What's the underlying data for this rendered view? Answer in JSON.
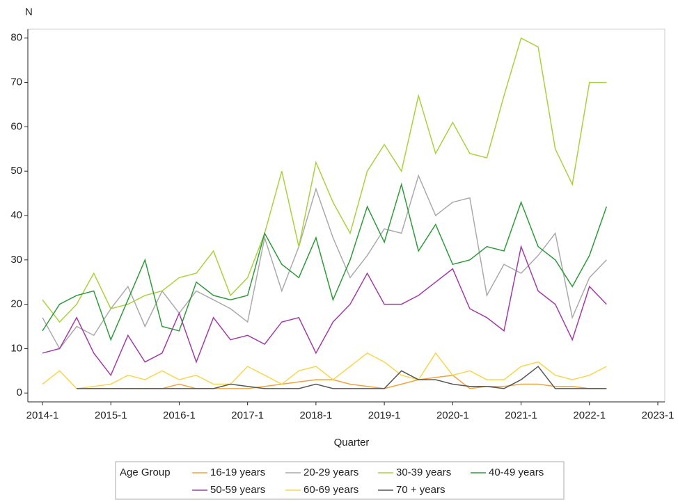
{
  "chart_data": {
    "type": "line",
    "y_label": "N",
    "x_label": "Quarter",
    "legend_title": "Age Group",
    "categories": [
      "2014-1",
      null,
      null,
      null,
      "2015-1",
      null,
      null,
      null,
      "2016-1",
      null,
      null,
      null,
      "2017-1",
      null,
      null,
      null,
      "2018-1",
      null,
      null,
      null,
      "2019-1",
      null,
      null,
      null,
      "2020-1",
      null,
      null,
      null,
      "2021-1",
      null,
      null,
      null,
      "2022-1",
      null,
      null,
      null,
      "2023-1"
    ],
    "ylim": [
      -2,
      82
    ],
    "yticks": [
      0,
      10,
      20,
      30,
      40,
      50,
      60,
      70,
      80
    ],
    "series": [
      {
        "name": "16-19 years",
        "color": "#f2a33a",
        "values": [
          null,
          null,
          1,
          1,
          1,
          1,
          1,
          1,
          2,
          1,
          1,
          1,
          1,
          1.5,
          2,
          2.5,
          3,
          3,
          2,
          1.5,
          1,
          2,
          3,
          3.5,
          4,
          1,
          1.5,
          1.5,
          2,
          2,
          1.5,
          1.5,
          1,
          1,
          null,
          null,
          null
        ]
      },
      {
        "name": "20-29 years",
        "color": "#aaaaaa",
        "values": [
          17,
          10,
          15,
          13,
          19,
          24,
          15,
          23,
          18,
          23,
          21,
          19,
          16,
          35,
          23,
          33,
          46,
          35,
          26,
          31,
          37,
          36,
          49,
          40,
          43,
          44,
          22,
          29,
          27,
          31,
          36,
          17,
          26,
          30,
          null,
          null,
          null
        ]
      },
      {
        "name": "30-39 years",
        "color": "#a8d23c",
        "values": [
          21,
          16,
          20,
          27,
          19,
          20,
          22,
          23,
          26,
          27,
          32,
          22,
          26,
          36,
          50,
          33,
          52,
          43,
          36,
          50,
          56,
          50,
          67,
          54,
          61,
          54,
          53,
          67,
          80,
          78,
          55,
          47,
          70,
          70,
          null,
          null,
          null
        ]
      },
      {
        "name": "40-49 years",
        "color": "#2e9a3a",
        "values": [
          14,
          20,
          22,
          23,
          12,
          21,
          30,
          15,
          14,
          25,
          22,
          21,
          22,
          36,
          29,
          26,
          35,
          21,
          30,
          42,
          34,
          47,
          32,
          38,
          29,
          30,
          33,
          32,
          43,
          33,
          30,
          24,
          31,
          42,
          null,
          null,
          null
        ]
      },
      {
        "name": "50-59 years",
        "color": "#a03ca6",
        "values": [
          9,
          10,
          17,
          9,
          4,
          13,
          7,
          9,
          18,
          7,
          17,
          12,
          13,
          11,
          16,
          17,
          9,
          16,
          20,
          27,
          20,
          20,
          22,
          25,
          28,
          19,
          17,
          14,
          33,
          23,
          20,
          12,
          24,
          20,
          null,
          null,
          null
        ]
      },
      {
        "name": "60-69 years",
        "color": "#f7d64a",
        "values": [
          2,
          5,
          1,
          1.5,
          2,
          4,
          3,
          5,
          3,
          4,
          2,
          2,
          6,
          4,
          2,
          5,
          6,
          3,
          6,
          9,
          7,
          4,
          3,
          9,
          4,
          5,
          3,
          3,
          6,
          7,
          4,
          3,
          4,
          6,
          null,
          null,
          null
        ]
      },
      {
        "name": "70 + years",
        "color": "#555555",
        "values": [
          null,
          null,
          1,
          1,
          1,
          1,
          1,
          1,
          1,
          1,
          1,
          2,
          1.5,
          1,
          1,
          1,
          2,
          1,
          1,
          1,
          1,
          5,
          3,
          3,
          2,
          1.5,
          1.5,
          1,
          3,
          6,
          1,
          1,
          1,
          1,
          null,
          null,
          null
        ]
      }
    ]
  }
}
